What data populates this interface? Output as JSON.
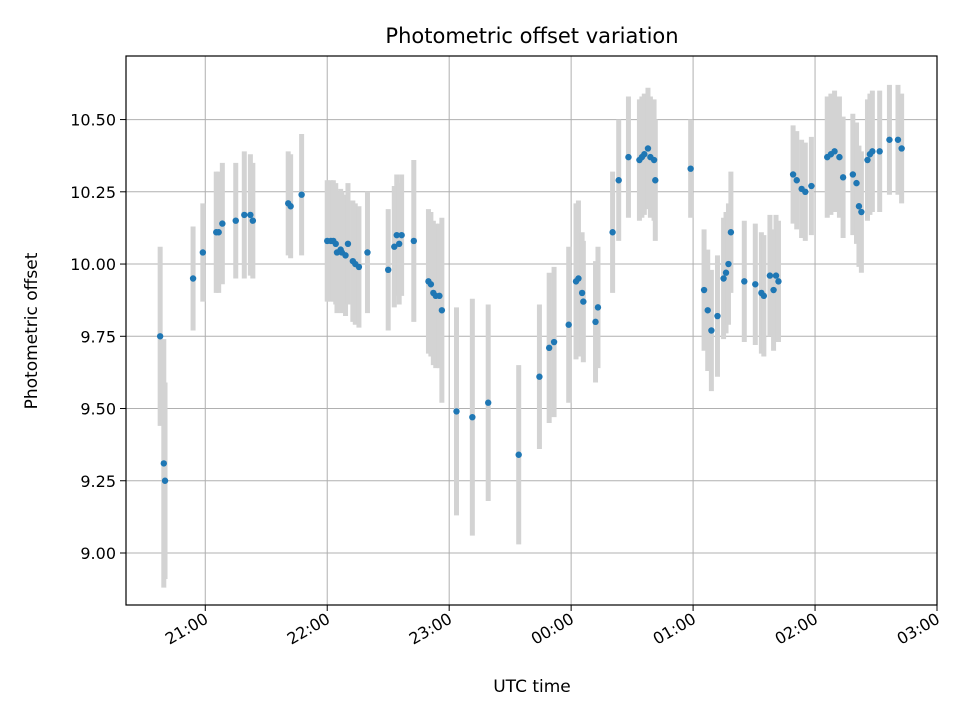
{
  "chart_data": {
    "type": "scatter",
    "title": "Photometric offset variation",
    "xlabel": "UTC time",
    "ylabel": "Photometric offset",
    "xlim_hours": [
      20.35,
      27.0
    ],
    "ylim": [
      8.82,
      10.72
    ],
    "grid": true,
    "point_color": "#1f77b4",
    "errorbar_color": "#d3d3d3",
    "x_ticks": [
      {
        "hour": 21,
        "label": "21:00"
      },
      {
        "hour": 22,
        "label": "22:00"
      },
      {
        "hour": 23,
        "label": "23:00"
      },
      {
        "hour": 24,
        "label": "00:00"
      },
      {
        "hour": 25,
        "label": "01:00"
      },
      {
        "hour": 26,
        "label": "02:00"
      },
      {
        "hour": 27,
        "label": "03:00"
      }
    ],
    "y_ticks": [
      {
        "value": 9.0,
        "label": "9.00"
      },
      {
        "value": 9.25,
        "label": "9.25"
      },
      {
        "value": 9.5,
        "label": "9.50"
      },
      {
        "value": 9.75,
        "label": "9.75"
      },
      {
        "value": 10.0,
        "label": "10.00"
      },
      {
        "value": 10.25,
        "label": "10.25"
      },
      {
        "value": 10.5,
        "label": "10.50"
      }
    ],
    "series": [
      {
        "points": [
          [
            20.63,
            9.75,
            0.31
          ],
          [
            20.66,
            9.31,
            0.43
          ],
          [
            20.67,
            9.25,
            0.34
          ],
          [
            20.9,
            9.95,
            0.18
          ],
          [
            20.98,
            10.04,
            0.17
          ],
          [
            21.09,
            10.11,
            0.21
          ],
          [
            21.11,
            10.11,
            0.21
          ],
          [
            21.14,
            10.14,
            0.21
          ],
          [
            21.25,
            10.15,
            0.2
          ],
          [
            21.32,
            10.17,
            0.22
          ],
          [
            21.37,
            10.17,
            0.21
          ],
          [
            21.39,
            10.15,
            0.2
          ],
          [
            21.68,
            10.21,
            0.18
          ],
          [
            21.7,
            10.2,
            0.18
          ],
          [
            21.79,
            10.24,
            0.21
          ],
          [
            22.0,
            10.08,
            0.21
          ],
          [
            22.03,
            10.08,
            0.21
          ],
          [
            22.05,
            10.08,
            0.21
          ],
          [
            22.07,
            10.07,
            0.21
          ],
          [
            22.08,
            10.04,
            0.21
          ],
          [
            22.11,
            10.05,
            0.21
          ],
          [
            22.12,
            10.04,
            0.21
          ],
          [
            22.15,
            10.03,
            0.21
          ],
          [
            22.17,
            10.07,
            0.21
          ],
          [
            22.21,
            10.01,
            0.21
          ],
          [
            22.23,
            10.0,
            0.21
          ],
          [
            22.26,
            9.99,
            0.21
          ],
          [
            22.33,
            10.04,
            0.21
          ],
          [
            22.5,
            9.98,
            0.21
          ],
          [
            22.55,
            10.06,
            0.21
          ],
          [
            22.57,
            10.1,
            0.21
          ],
          [
            22.59,
            10.07,
            0.21
          ],
          [
            22.61,
            10.1,
            0.21
          ],
          [
            22.71,
            10.08,
            0.28
          ],
          [
            22.83,
            9.94,
            0.25
          ],
          [
            22.85,
            9.93,
            0.25
          ],
          [
            22.87,
            9.9,
            0.25
          ],
          [
            22.89,
            9.89,
            0.25
          ],
          [
            22.92,
            9.89,
            0.25
          ],
          [
            22.94,
            9.84,
            0.32
          ],
          [
            23.06,
            9.49,
            0.36
          ],
          [
            23.19,
            9.47,
            0.41
          ],
          [
            23.32,
            9.52,
            0.34
          ],
          [
            23.57,
            9.34,
            0.31
          ],
          [
            23.74,
            9.61,
            0.25
          ],
          [
            23.82,
            9.71,
            0.26
          ],
          [
            23.86,
            9.73,
            0.26
          ],
          [
            23.98,
            9.79,
            0.27
          ],
          [
            24.04,
            9.94,
            0.27
          ],
          [
            24.06,
            9.95,
            0.27
          ],
          [
            24.09,
            9.9,
            0.21
          ],
          [
            24.1,
            9.87,
            0.21
          ],
          [
            24.2,
            9.8,
            0.21
          ],
          [
            24.22,
            9.85,
            0.21
          ],
          [
            24.34,
            10.11,
            0.21
          ],
          [
            24.39,
            10.29,
            0.21
          ],
          [
            24.47,
            10.37,
            0.21
          ],
          [
            24.56,
            10.36,
            0.21
          ],
          [
            24.58,
            10.37,
            0.21
          ],
          [
            24.6,
            10.38,
            0.21
          ],
          [
            24.63,
            10.4,
            0.21
          ],
          [
            24.65,
            10.37,
            0.21
          ],
          [
            24.68,
            10.36,
            0.21
          ],
          [
            24.69,
            10.29,
            0.21
          ],
          [
            24.98,
            10.33,
            0.17
          ],
          [
            25.09,
            9.91,
            0.21
          ],
          [
            25.12,
            9.84,
            0.21
          ],
          [
            25.15,
            9.77,
            0.21
          ],
          [
            25.2,
            9.82,
            0.21
          ],
          [
            25.25,
            9.95,
            0.21
          ],
          [
            25.27,
            9.97,
            0.21
          ],
          [
            25.29,
            10.0,
            0.21
          ],
          [
            25.31,
            10.11,
            0.21
          ],
          [
            25.42,
            9.94,
            0.21
          ],
          [
            25.51,
            9.93,
            0.21
          ],
          [
            25.56,
            9.9,
            0.21
          ],
          [
            25.58,
            9.89,
            0.21
          ],
          [
            25.63,
            9.96,
            0.21
          ],
          [
            25.66,
            9.91,
            0.21
          ],
          [
            25.68,
            9.96,
            0.21
          ],
          [
            25.7,
            9.94,
            0.21
          ],
          [
            25.82,
            10.31,
            0.17
          ],
          [
            25.85,
            10.29,
            0.17
          ],
          [
            25.89,
            10.26,
            0.17
          ],
          [
            25.92,
            10.25,
            0.17
          ],
          [
            25.97,
            10.27,
            0.17
          ],
          [
            26.1,
            10.37,
            0.21
          ],
          [
            26.13,
            10.38,
            0.21
          ],
          [
            26.16,
            10.39,
            0.21
          ],
          [
            26.2,
            10.37,
            0.21
          ],
          [
            26.23,
            10.3,
            0.21
          ],
          [
            26.31,
            10.31,
            0.21
          ],
          [
            26.34,
            10.28,
            0.21
          ],
          [
            26.36,
            10.2,
            0.21
          ],
          [
            26.38,
            10.18,
            0.21
          ],
          [
            26.43,
            10.36,
            0.21
          ],
          [
            26.45,
            10.38,
            0.21
          ],
          [
            26.47,
            10.39,
            0.21
          ],
          [
            26.53,
            10.39,
            0.21
          ],
          [
            26.61,
            10.43,
            0.19
          ],
          [
            26.68,
            10.43,
            0.19
          ],
          [
            26.71,
            10.4,
            0.19
          ]
        ]
      }
    ]
  }
}
